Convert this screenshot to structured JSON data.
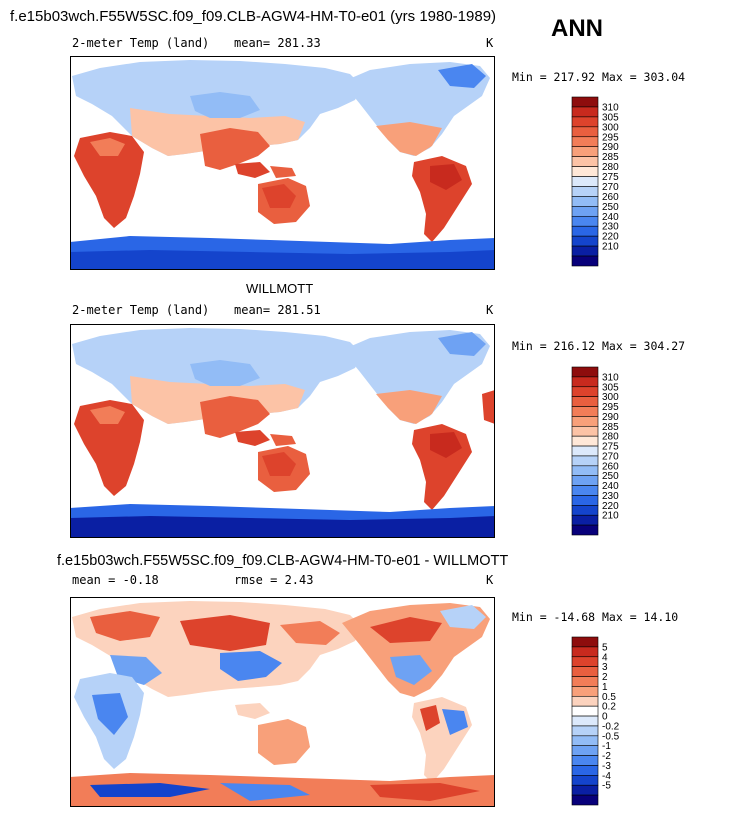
{
  "header": {
    "case_title": "f.e15b03wch.F55W5SC.f09_f09.CLB-AGW4-HM-T0-e01 (yrs 1980-1989)",
    "season": "ANN"
  },
  "colors": {
    "abs_scale": [
      "#08007a",
      "#0a1fa3",
      "#1444cc",
      "#2a66e6",
      "#4a86f0",
      "#6ea2f3",
      "#92bcf6",
      "#b6d2f8",
      "#dce9fb",
      "#ffe8d8",
      "#fcc3a6",
      "#f8a07a",
      "#f27d58",
      "#e95f3f",
      "#dd432c",
      "#c82a1e",
      "#8e0d0d"
    ],
    "diff_scale": [
      "#08007a",
      "#0a1fa3",
      "#1444cc",
      "#2a66e6",
      "#4a86f0",
      "#6ea2f3",
      "#92bcf6",
      "#b6d2f8",
      "#dce9fb",
      "#ffffff",
      "#fcd3be",
      "#f8a07a",
      "#f27d58",
      "#e95f3f",
      "#dd432c",
      "#c82a1e",
      "#8e0d0d"
    ],
    "ocean": "#ffffff",
    "coast": "#000000"
  },
  "panels": [
    {
      "id": "model",
      "title": "",
      "variable": "2-meter Temp (land)",
      "stat_text": "mean=  281.33",
      "units": "K",
      "min_max": "Min = 217.92 Max = 303.04",
      "kind": "abs",
      "levels": [
        "210",
        "220",
        "230",
        "240",
        "250",
        "260",
        "270",
        "275",
        "280",
        "285",
        "290",
        "295",
        "300",
        "305",
        "310"
      ]
    },
    {
      "id": "obs",
      "title": "WILLMOTT",
      "variable": "2-meter Temp (land)",
      "stat_text": "mean=  281.51",
      "units": "K",
      "min_max": "Min = 216.12 Max = 304.27",
      "kind": "abs",
      "levels": [
        "210",
        "220",
        "230",
        "240",
        "250",
        "260",
        "270",
        "275",
        "280",
        "285",
        "290",
        "295",
        "300",
        "305",
        "310"
      ]
    },
    {
      "id": "diff",
      "title": "f.e15b03wch.F55W5SC.f09_f09.CLB-AGW4-HM-T0-e01 - WILLMOTT",
      "variable": "mean =    -0.18",
      "stat_text": "rmse =     2.43",
      "units": "K",
      "min_max": "Min = -14.68 Max =  14.10",
      "kind": "diff",
      "levels": [
        "-5",
        "-4",
        "-3",
        "-2",
        "-1",
        "-0.5",
        "-0.2",
        "0",
        "0.2",
        "0.5",
        "1",
        "2",
        "3",
        "4",
        "5"
      ]
    }
  ],
  "chart_data": [
    {
      "type": "heatmap",
      "title": "",
      "variable": "2-meter Temp (land)",
      "units": "K",
      "mean": 281.33,
      "min": 217.92,
      "max": 303.04,
      "colorbar_levels": [
        210,
        220,
        230,
        240,
        250,
        260,
        270,
        275,
        280,
        285,
        290,
        295,
        300,
        305,
        310
      ]
    },
    {
      "type": "heatmap",
      "title": "WILLMOTT",
      "variable": "2-meter Temp (land)",
      "units": "K",
      "mean": 281.51,
      "min": 216.12,
      "max": 304.27,
      "colorbar_levels": [
        210,
        220,
        230,
        240,
        250,
        260,
        270,
        275,
        280,
        285,
        290,
        295,
        300,
        305,
        310
      ]
    },
    {
      "type": "heatmap",
      "title": "f.e15b03wch.F55W5SC.f09_f09.CLB-AGW4-HM-T0-e01 - WILLMOTT",
      "units": "K",
      "mean": -0.18,
      "rmse": 2.43,
      "min": -14.68,
      "max": 14.1,
      "colorbar_levels": [
        -5,
        -4,
        -3,
        -2,
        -1,
        -0.5,
        -0.2,
        0,
        0.2,
        0.5,
        1,
        2,
        3,
        4,
        5
      ]
    }
  ]
}
